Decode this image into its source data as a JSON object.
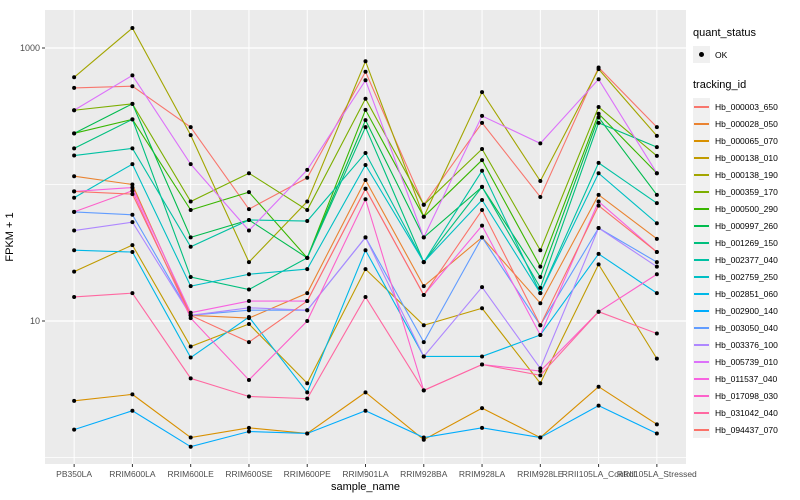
{
  "figure": {
    "kind": "ggplot-line-chart",
    "background": "#ffffff",
    "panel_background": "#ebebeb",
    "grid_color": "#ffffff",
    "tick_color": "#333333",
    "point_color": "#000000"
  },
  "legend": {
    "quant_status_title": "quant_status",
    "quant_status_items": [
      {
        "label": "OK",
        "marker": "black-point"
      }
    ],
    "tracking_id_title": "tracking_id"
  },
  "chart_data": {
    "type": "line",
    "title": "",
    "xlabel": "sample_name",
    "ylabel": "FPKM + 1",
    "y_scale": "log10",
    "ylim": [
      0.9,
      2100
    ],
    "yticks": [
      {
        "value": 1000,
        "label": "1000"
      },
      {
        "value": 10,
        "label": "10"
      }
    ],
    "minor_gridlines": [
      1,
      100
    ],
    "grid": true,
    "legend_position": "right",
    "categories": [
      "PB350LA",
      "RRIM600LA",
      "RRIM600LE",
      "RRIM600SE",
      "RRIM600PE",
      "RRIM901LA",
      "RRIM928BA",
      "RRIM928LA",
      "RRIM928LE",
      "RRII105LA_Control",
      "RRII105LA_Stressed"
    ],
    "series": [
      {
        "name": "Hb_000003_650",
        "color": "#F8766D",
        "values": [
          510,
          525,
          263,
          66,
          112,
          670,
          71,
          283,
          81,
          720,
          263
        ]
      },
      {
        "name": "Hb_000028_050",
        "color": "#EA8331",
        "values": [
          115,
          100,
          11,
          10.5,
          16,
          108,
          18,
          41,
          13.5,
          84,
          40
        ]
      },
      {
        "name": "Hb_000065_070",
        "color": "#D89000",
        "values": [
          2.6,
          2.9,
          1.4,
          1.65,
          1.5,
          3.0,
          1.35,
          2.3,
          1.4,
          3.3,
          1.75
        ]
      },
      {
        "name": "Hb_000138_010",
        "color": "#C09B00",
        "values": [
          23,
          36,
          6.5,
          9.5,
          3.5,
          24,
          9.3,
          12.4,
          3.5,
          26,
          5.3
        ]
      },
      {
        "name": "Hb_000138_190",
        "color": "#A3A500",
        "values": [
          610,
          1400,
          230,
          27,
          75,
          800,
          58,
          475,
          106,
          700,
          227
        ]
      },
      {
        "name": "Hb_000359_170",
        "color": "#7CAE00",
        "values": [
          350,
          390,
          75,
          121,
          65,
          425,
          71,
          182,
          33,
          370,
          162
        ]
      },
      {
        "name": "Hb_000500_290",
        "color": "#39B600",
        "values": [
          237,
          300,
          65,
          88,
          29,
          352,
          58,
          151,
          25,
          330,
          121
        ]
      },
      {
        "name": "Hb_000997_260",
        "color": "#00BB4E",
        "values": [
          237,
          390,
          41,
          55,
          29,
          296,
          41,
          96,
          21,
          310,
          84
        ]
      },
      {
        "name": "Hb_001269_150",
        "color": "#00BF7D",
        "values": [
          184,
          300,
          21,
          17,
          29,
          263,
          27,
          96,
          17.5,
          283,
          188
        ]
      },
      {
        "name": "Hb_002377_040",
        "color": "#00C1A3",
        "values": [
          163,
          184,
          35,
          55,
          54,
          170,
          27,
          126,
          16,
          144,
          73
        ]
      },
      {
        "name": "Hb_002759_250",
        "color": "#00BFC4",
        "values": [
          80,
          141,
          18,
          22,
          24,
          139,
          27,
          77,
          16,
          121,
          52
        ]
      },
      {
        "name": "Hb_002851_060",
        "color": "#00B8E7",
        "values": [
          33,
          32,
          5.4,
          10.7,
          3.0,
          33,
          5.5,
          5.5,
          7.9,
          31,
          16
        ]
      },
      {
        "name": "Hb_002900_140",
        "color": "#00ACFC",
        "values": [
          1.6,
          2.2,
          1.2,
          1.55,
          1.5,
          2.2,
          1.4,
          1.65,
          1.4,
          2.4,
          1.5
        ]
      },
      {
        "name": "Hb_003050_040",
        "color": "#619CFF",
        "values": [
          63,
          60,
          11,
          12,
          12,
          41,
          7.0,
          41,
          9.3,
          48,
          27
        ]
      },
      {
        "name": "Hb_003376_100",
        "color": "#AE87FF",
        "values": [
          46,
          53,
          11,
          12.5,
          12,
          41,
          5.5,
          17.7,
          4.5,
          48,
          25
        ]
      },
      {
        "name": "Hb_005739_010",
        "color": "#DC71FA",
        "values": [
          350,
          630,
          141,
          46,
          128,
          580,
          41,
          318,
          200,
          590,
          121
        ]
      },
      {
        "name": "Hb_011537_040",
        "color": "#F763E0",
        "values": [
          89,
          95,
          11.5,
          14,
          14,
          93,
          15.5,
          50,
          7.9,
          75,
          32
        ]
      },
      {
        "name": "Hb_017098_030",
        "color": "#FD61CA",
        "values": [
          63,
          90,
          10.5,
          3.7,
          10,
          78,
          3.1,
          4.8,
          4.3,
          11.7,
          22
        ]
      },
      {
        "name": "Hb_031042_040",
        "color": "#FF68A1",
        "values": [
          15,
          16,
          3.8,
          2.8,
          2.7,
          15,
          3.1,
          4.8,
          4.0,
          11.7,
          8.1
        ]
      },
      {
        "name": "Hb_094437_070",
        "color": "#FB7269",
        "values": [
          89,
          85,
          11,
          7.0,
          14,
          93,
          15.5,
          65,
          9.3,
          70,
          32
        ]
      }
    ]
  }
}
